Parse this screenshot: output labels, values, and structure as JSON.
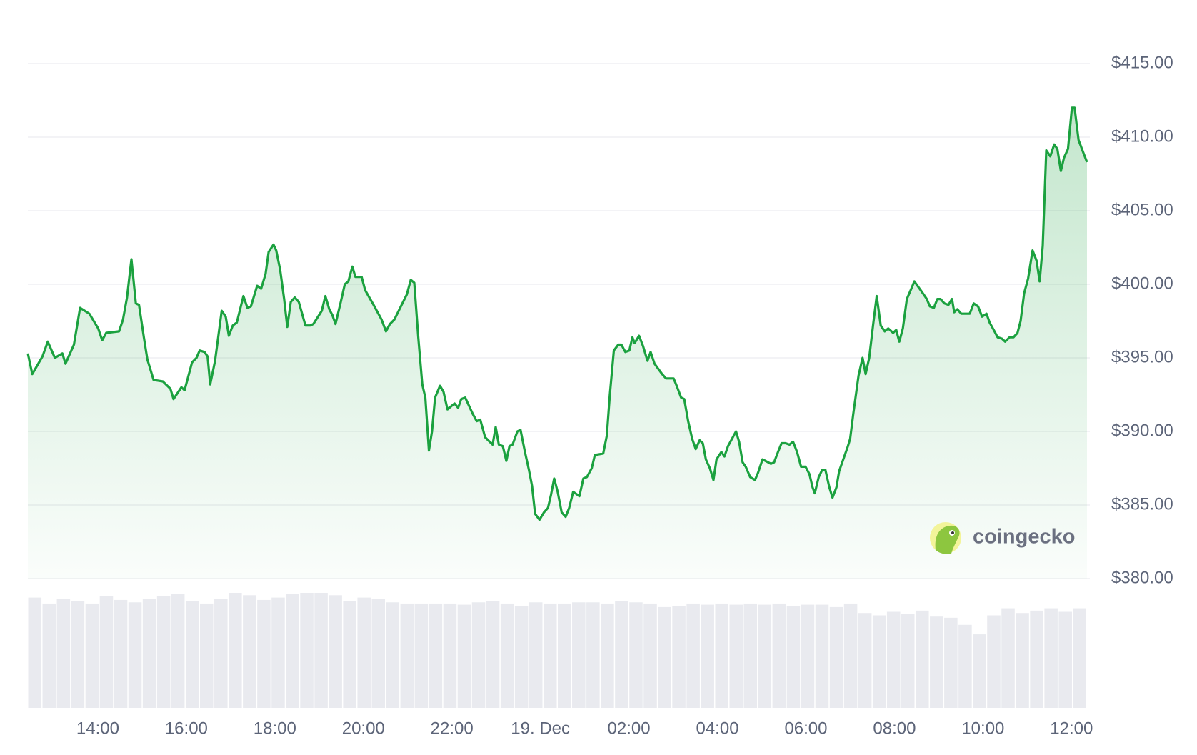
{
  "chart_data": {
    "type": "line",
    "x": [
      12.42,
      12.52,
      12.75,
      12.87,
      13.03,
      13.2,
      13.27,
      13.46,
      13.6,
      13.81,
      14.01,
      14.1,
      14.19,
      14.48,
      14.57,
      14.66,
      14.76,
      14.86,
      14.93,
      15.04,
      15.12,
      15.26,
      15.47,
      15.64,
      15.71,
      15.89,
      15.96,
      16.13,
      16.23,
      16.3,
      16.41,
      16.48,
      16.54,
      16.65,
      16.8,
      16.89,
      16.96,
      17.05,
      17.14,
      17.29,
      17.38,
      17.46,
      17.6,
      17.69,
      17.79,
      17.86,
      17.97,
      18.03,
      18.12,
      18.21,
      18.28,
      18.36,
      18.45,
      18.54,
      18.69,
      18.8,
      18.87,
      19.06,
      19.14,
      19.23,
      19.3,
      19.37,
      19.49,
      19.58,
      19.66,
      19.75,
      19.82,
      19.96,
      20.04,
      20.23,
      20.41,
      20.51,
      20.6,
      20.7,
      20.88,
      20.98,
      21.07,
      21.15,
      21.24,
      21.33,
      21.4,
      21.48,
      21.55,
      21.62,
      21.73,
      21.81,
      21.9,
      22.06,
      22.14,
      22.21,
      22.3,
      22.47,
      22.56,
      22.64,
      22.75,
      22.92,
      22.99,
      23.06,
      23.15,
      23.23,
      23.3,
      23.37,
      23.48,
      23.55,
      23.65,
      23.74,
      23.81,
      23.88,
      23.98,
      24.08,
      24.17,
      24.24,
      24.31,
      24.39,
      24.48,
      24.57,
      24.65,
      24.74,
      24.88,
      24.97,
      25.05,
      25.16,
      25.23,
      25.42,
      25.5,
      25.57,
      25.66,
      25.76,
      25.83,
      25.92,
      26.01,
      26.08,
      26.13,
      26.23,
      26.32,
      26.42,
      26.49,
      26.58,
      26.75,
      26.84,
      27.01,
      27.08,
      27.18,
      27.25,
      27.34,
      27.43,
      27.51,
      27.6,
      27.67,
      27.74,
      27.83,
      27.91,
      27.98,
      28.09,
      28.16,
      28.24,
      28.42,
      28.49,
      28.57,
      28.64,
      28.74,
      28.85,
      28.92,
      29.02,
      29.21,
      29.28,
      29.37,
      29.45,
      29.54,
      29.63,
      29.71,
      29.8,
      29.89,
      29.99,
      30.08,
      30.15,
      30.2,
      30.29,
      30.37,
      30.44,
      30.53,
      30.6,
      30.69,
      30.75,
      30.95,
      31.0,
      31.07,
      31.19,
      31.28,
      31.35,
      31.43,
      31.52,
      31.6,
      31.69,
      31.78,
      31.86,
      31.97,
      32.04,
      32.11,
      32.19,
      32.28,
      32.38,
      32.45,
      32.64,
      32.73,
      32.8,
      32.89,
      32.97,
      33.04,
      33.13,
      33.22,
      33.3,
      33.35,
      33.42,
      33.51,
      33.7,
      33.79,
      33.89,
      33.98,
      34.08,
      34.15,
      34.26,
      34.33,
      34.43,
      34.5,
      34.6,
      34.69,
      34.78,
      34.85,
      34.93,
      35.02,
      35.12,
      35.21,
      35.28,
      35.35,
      35.43,
      35.52,
      35.61,
      35.68,
      35.76,
      35.83,
      35.92,
      36.01,
      36.07,
      36.16,
      36.26,
      36.35
    ],
    "series": [
      {
        "color": "#1ba13f",
        "values": [
          395.3,
          393.9,
          395.1,
          396.1,
          395.0,
          395.3,
          394.6,
          395.9,
          398.4,
          398.0,
          397.0,
          396.2,
          396.7,
          396.8,
          397.6,
          399.1,
          401.7,
          398.7,
          398.6,
          396.4,
          394.9,
          393.5,
          393.4,
          392.9,
          392.2,
          393.0,
          392.8,
          394.7,
          395.0,
          395.5,
          395.4,
          395.1,
          393.2,
          394.8,
          398.2,
          397.8,
          396.5,
          397.2,
          397.4,
          399.2,
          398.4,
          398.5,
          399.9,
          399.7,
          400.7,
          402.2,
          402.7,
          402.3,
          401.0,
          399.0,
          397.1,
          398.8,
          399.1,
          398.8,
          397.2,
          397.2,
          397.3,
          398.2,
          399.2,
          398.3,
          397.9,
          397.3,
          398.8,
          400.0,
          400.2,
          401.2,
          400.5,
          400.5,
          399.6,
          398.6,
          397.6,
          396.8,
          397.3,
          397.6,
          398.7,
          399.3,
          400.3,
          400.1,
          396.4,
          393.2,
          392.3,
          388.7,
          390.0,
          392.3,
          393.1,
          392.7,
          391.5,
          391.9,
          391.6,
          392.2,
          392.3,
          391.2,
          390.7,
          390.8,
          389.6,
          389.1,
          390.3,
          389.1,
          389.0,
          388.0,
          389.0,
          389.1,
          390.0,
          390.1,
          388.6,
          387.4,
          386.3,
          384.4,
          384.0,
          384.5,
          384.8,
          385.7,
          386.8,
          385.9,
          384.5,
          384.2,
          384.8,
          385.9,
          385.6,
          386.8,
          386.9,
          387.5,
          388.4,
          388.5,
          389.7,
          392.5,
          395.5,
          395.9,
          395.9,
          395.4,
          395.5,
          396.4,
          396.0,
          396.5,
          395.8,
          394.8,
          395.4,
          394.6,
          393.9,
          393.6,
          393.6,
          393.1,
          392.3,
          392.2,
          390.7,
          389.5,
          388.8,
          389.4,
          389.2,
          388.1,
          387.5,
          386.7,
          388.1,
          388.6,
          388.3,
          389.0,
          390.0,
          389.3,
          387.9,
          387.6,
          386.9,
          386.7,
          387.2,
          388.1,
          387.8,
          387.9,
          388.6,
          389.2,
          389.2,
          389.1,
          389.3,
          388.6,
          387.6,
          387.6,
          387.1,
          386.2,
          385.8,
          386.9,
          387.4,
          387.4,
          386.2,
          385.5,
          386.2,
          387.3,
          389.0,
          389.5,
          391.2,
          393.8,
          395.0,
          393.9,
          395.0,
          397.3,
          399.2,
          397.2,
          396.8,
          397.0,
          396.7,
          396.9,
          396.1,
          397.0,
          399.0,
          399.7,
          400.2,
          399.4,
          399.0,
          398.5,
          398.4,
          399.0,
          399.0,
          398.7,
          398.6,
          399.0,
          398.1,
          398.3,
          398.0,
          398.0,
          398.7,
          398.5,
          397.8,
          398.0,
          397.4,
          396.8,
          396.4,
          396.3,
          396.1,
          396.4,
          396.4,
          396.7,
          397.5,
          399.4,
          400.4,
          402.3,
          401.6,
          400.2,
          402.6,
          409.1,
          408.7,
          409.5,
          409.2,
          407.7,
          408.6,
          409.2,
          412.0,
          412.0,
          409.8,
          409.0,
          408.3
        ]
      }
    ],
    "xlim": [
      12.42,
      36.35
    ],
    "xticks": [
      {
        "value": 14,
        "label": "14:00"
      },
      {
        "value": 16,
        "label": "16:00"
      },
      {
        "value": 18,
        "label": "18:00"
      },
      {
        "value": 20,
        "label": "20:00"
      },
      {
        "value": 22,
        "label": "22:00"
      },
      {
        "value": 24,
        "label": "19. Dec"
      },
      {
        "value": 26,
        "label": "02:00"
      },
      {
        "value": 28,
        "label": "04:00"
      },
      {
        "value": 30,
        "label": "06:00"
      },
      {
        "value": 32,
        "label": "08:00"
      },
      {
        "value": 34,
        "label": "10:00"
      },
      {
        "value": 36,
        "label": "12:00"
      }
    ],
    "ylim": [
      380,
      415
    ],
    "yticks": [
      {
        "value": 380,
        "label": "$380.00"
      },
      {
        "value": 385,
        "label": "$385.00"
      },
      {
        "value": 390,
        "label": "$390.00"
      },
      {
        "value": 395,
        "label": "$395.00"
      },
      {
        "value": 400,
        "label": "$400.00"
      },
      {
        "value": 405,
        "label": "$405.00"
      },
      {
        "value": 410,
        "label": "$410.00"
      },
      {
        "value": 415,
        "label": "$415.00"
      }
    ],
    "grid": true,
    "watermark": "coingecko",
    "volume": {
      "color": "#e9eaef",
      "ylim": [
        0,
        100
      ],
      "values": [
        93,
        88,
        92,
        90,
        88,
        94,
        91,
        89,
        92,
        94,
        96,
        90,
        88,
        92,
        97,
        95,
        91,
        93,
        96,
        97,
        97,
        95,
        90,
        93,
        92,
        89,
        88,
        88,
        88,
        88,
        87,
        89,
        90,
        88,
        86,
        89,
        88,
        88,
        89,
        89,
        88,
        90,
        89,
        88,
        85,
        86,
        88,
        87,
        88,
        87,
        88,
        87,
        88,
        86,
        87,
        87,
        85,
        88,
        80,
        78,
        81,
        79,
        82,
        77,
        76,
        70,
        62,
        78,
        84,
        80,
        82,
        84,
        81,
        84
      ]
    }
  }
}
